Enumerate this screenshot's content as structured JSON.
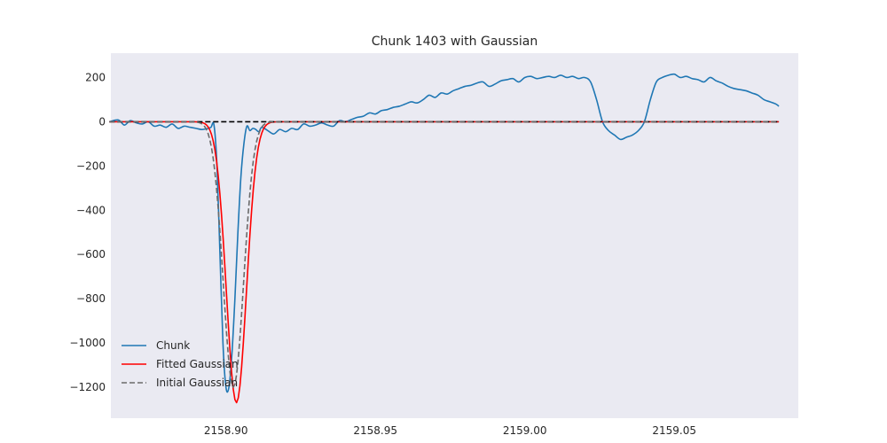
{
  "chart_data": {
    "type": "line",
    "title": "Chunk 1403 with Gaussian",
    "xlabel": "",
    "ylabel": "",
    "xlim": [
      2158.8615,
      2159.0915
    ],
    "ylim": [
      -1340,
      310
    ],
    "xticks": [
      2158.9,
      2158.95,
      2159.0,
      2159.05
    ],
    "xtick_labels": [
      "2158.90",
      "2158.95",
      "2159.00",
      "2159.05"
    ],
    "yticks": [
      200,
      0,
      -200,
      -400,
      -600,
      -800,
      -1000,
      -1200
    ],
    "ytick_labels": [
      "200",
      "0",
      "−200",
      "−400",
      "−600",
      "−800",
      "−1000",
      "−1200"
    ],
    "grid": false,
    "background": "#eaeaf2",
    "legend_position": "lower-left",
    "series": [
      {
        "name": "Chunk",
        "color": "#1f77b4",
        "style": "solid",
        "x": [
          2158.861,
          2158.864,
          2158.866,
          2158.868,
          2158.87,
          2158.872,
          2158.874,
          2158.876,
          2158.878,
          2158.88,
          2158.882,
          2158.884,
          2158.886,
          2158.888,
          2158.89,
          2158.892,
          2158.894,
          2158.895,
          2158.896,
          2158.897,
          2158.898,
          2158.899,
          2158.9,
          2158.901,
          2158.902,
          2158.903,
          2158.904,
          2158.905,
          2158.906,
          2158.907,
          2158.908,
          2158.909,
          2158.91,
          2158.911,
          2158.912,
          2158.914,
          2158.916,
          2158.918,
          2158.92,
          2158.922,
          2158.924,
          2158.926,
          2158.928,
          2158.93,
          2158.932,
          2158.934,
          2158.936,
          2158.938,
          2158.94,
          2158.942,
          2158.944,
          2158.946,
          2158.948,
          2158.95,
          2158.952,
          2158.954,
          2158.956,
          2158.958,
          2158.96,
          2158.962,
          2158.964,
          2158.966,
          2158.968,
          2158.97,
          2158.972,
          2158.974,
          2158.976,
          2158.978,
          2158.98,
          2158.982,
          2158.984,
          2158.986,
          2158.988,
          2158.99,
          2158.992,
          2158.994,
          2158.996,
          2158.998,
          2159.0,
          2159.002,
          2159.004,
          2159.006,
          2159.008,
          2159.01,
          2159.012,
          2159.014,
          2159.016,
          2159.018,
          2159.02,
          2159.022,
          2159.024,
          2159.026,
          2159.028,
          2159.03,
          2159.032,
          2159.034,
          2159.036,
          2159.038,
          2159.04,
          2159.042,
          2159.044,
          2159.046,
          2159.048,
          2159.05,
          2159.052,
          2159.054,
          2159.056,
          2159.058,
          2159.06,
          2159.062,
          2159.064,
          2159.066,
          2159.068,
          2159.07,
          2159.072,
          2159.074,
          2159.076,
          2159.078,
          2159.08,
          2159.082,
          2159.084,
          2159.085
        ],
        "y": [
          0,
          8,
          -15,
          5,
          -5,
          -10,
          0,
          -20,
          -15,
          -25,
          -10,
          -30,
          -20,
          -25,
          -30,
          -35,
          -30,
          -25,
          -15,
          -200,
          -600,
          -1000,
          -1200,
          -1200,
          -1050,
          -800,
          -500,
          -250,
          -100,
          -20,
          -40,
          -30,
          -35,
          -45,
          -25,
          -40,
          -55,
          -35,
          -45,
          -30,
          -35,
          -10,
          -20,
          -15,
          -5,
          -15,
          -20,
          5,
          0,
          10,
          20,
          25,
          40,
          35,
          50,
          55,
          65,
          70,
          80,
          90,
          85,
          100,
          120,
          110,
          130,
          125,
          140,
          150,
          160,
          165,
          175,
          180,
          160,
          170,
          185,
          190,
          195,
          180,
          200,
          205,
          195,
          200,
          205,
          200,
          210,
          200,
          205,
          195,
          200,
          180,
          100,
          0,
          -40,
          -60,
          -80,
          -70,
          -60,
          -40,
          0,
          100,
          180,
          200,
          210,
          215,
          200,
          205,
          195,
          190,
          180,
          200,
          185,
          175,
          160,
          150,
          145,
          140,
          130,
          120,
          100,
          90,
          80,
          70
        ],
        "smooth": true
      },
      {
        "name": "Fitted Gaussian",
        "color": "#ff0000",
        "style": "solid",
        "gaussian": {
          "amplitude": -1270,
          "center": 2158.9035,
          "sigma": 0.00335,
          "offset": 0
        }
      },
      {
        "name": "Initial Gaussian",
        "color": "#6b6b6b",
        "style": "dashed",
        "gaussian": {
          "amplitude": -1200,
          "center": 2158.9025,
          "sigma": 0.0034,
          "offset": 0
        }
      },
      {
        "name": "",
        "color": "#000000",
        "style": "dashed",
        "constant": 0
      }
    ],
    "legend": [
      "Chunk",
      "Fitted Gaussian",
      "Initial Gaussian"
    ]
  }
}
